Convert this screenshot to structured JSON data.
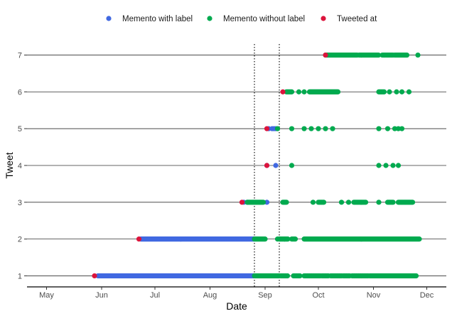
{
  "chart_data": {
    "type": "scatter",
    "title": "",
    "xlabel": "Date",
    "ylabel": "Tweet",
    "xlim": [
      "2021-04-20",
      "2021-12-12"
    ],
    "ylim": [
      0.7,
      7.3
    ],
    "x_ticks": [
      {
        "date": "2021-05-01",
        "label": "May"
      },
      {
        "date": "2021-06-01",
        "label": "Jun"
      },
      {
        "date": "2021-07-01",
        "label": "Jul"
      },
      {
        "date": "2021-08-01",
        "label": "Aug"
      },
      {
        "date": "2021-09-01",
        "label": "Sep"
      },
      {
        "date": "2021-10-01",
        "label": "Oct"
      },
      {
        "date": "2021-11-01",
        "label": "Nov"
      },
      {
        "date": "2021-12-01",
        "label": "Dec"
      }
    ],
    "y_ticks": [
      1,
      2,
      3,
      4,
      5,
      6,
      7
    ],
    "vertical_reference_lines": [
      "2021-08-26",
      "2021-09-09"
    ],
    "grid": "horizontal lines at each tweet",
    "legend_position": "top",
    "series": [
      {
        "name": "Memento with label",
        "color": "#4169E1",
        "points": [
          {
            "y": 1,
            "start": "2021-05-30",
            "end": "2021-08-26",
            "step": 0.35
          },
          {
            "y": 2,
            "start": "2021-06-23",
            "end": "2021-08-26",
            "step": 0.35
          },
          {
            "y": 3,
            "x": [
              "2021-08-20",
              "2021-08-22",
              "2021-09-02"
            ]
          },
          {
            "y": 4,
            "x": [
              "2021-09-02",
              "2021-09-07"
            ]
          },
          {
            "y": 5,
            "x": [
              "2021-09-03",
              "2021-09-05",
              "2021-09-06",
              "2021-09-07"
            ]
          }
        ]
      },
      {
        "name": "Memento without label",
        "color": "#00AA4F",
        "points": [
          {
            "y": 1,
            "start": "2021-08-26",
            "end": "2021-09-09",
            "step": 0.4
          },
          {
            "y": 1,
            "start": "2021-09-10",
            "end": "2021-09-14",
            "step": 0.6
          },
          {
            "y": 1,
            "start": "2021-09-17",
            "end": "2021-09-21",
            "step": 0.6
          },
          {
            "y": 1,
            "start": "2021-09-23",
            "end": "2021-10-02",
            "step": 0.6
          },
          {
            "y": 1,
            "start": "2021-10-03",
            "end": "2021-10-07",
            "step": 0.6
          },
          {
            "y": 1,
            "start": "2021-10-08",
            "end": "2021-10-14",
            "step": 0.6
          },
          {
            "y": 1,
            "start": "2021-10-15",
            "end": "2021-10-19",
            "step": 0.6
          },
          {
            "y": 1,
            "start": "2021-10-20",
            "end": "2021-10-29",
            "step": 0.6
          },
          {
            "y": 1,
            "start": "2021-10-30",
            "end": "2021-11-25",
            "step": 0.4
          },
          {
            "y": 2,
            "start": "2021-08-26",
            "end": "2021-09-01",
            "step": 0.4
          },
          {
            "y": 2,
            "x": [
              "2021-09-08",
              "2021-09-12"
            ]
          },
          {
            "y": 2,
            "start": "2021-09-09",
            "end": "2021-09-14",
            "step": 0.4
          },
          {
            "y": 2,
            "start": "2021-09-16",
            "end": "2021-09-18",
            "step": 0.5
          },
          {
            "y": 2,
            "start": "2021-09-23",
            "end": "2021-11-27",
            "step": 0.4
          },
          {
            "y": 3,
            "start": "2021-08-22",
            "end": "2021-08-31",
            "step": 0.5
          },
          {
            "y": 3,
            "start": "2021-09-11",
            "end": "2021-09-13",
            "step": 0.5
          },
          {
            "y": 3,
            "x": [
              "2021-09-28"
            ]
          },
          {
            "y": 3,
            "start": "2021-10-01",
            "end": "2021-10-04",
            "step": 0.6
          },
          {
            "y": 3,
            "x": [
              "2021-10-14",
              "2021-10-18"
            ]
          },
          {
            "y": 3,
            "start": "2021-10-21",
            "end": "2021-10-28",
            "step": 0.6
          },
          {
            "y": 3,
            "x": [
              "2021-11-04"
            ]
          },
          {
            "y": 3,
            "start": "2021-11-09",
            "end": "2021-11-12",
            "step": 0.6
          },
          {
            "y": 3,
            "start": "2021-11-15",
            "end": "2021-11-23",
            "step": 0.5
          },
          {
            "y": 4,
            "x": [
              "2021-09-16"
            ]
          },
          {
            "y": 4,
            "x": [
              "2021-11-04",
              "2021-11-08",
              "2021-11-12",
              "2021-11-15"
            ]
          },
          {
            "y": 5,
            "x": [
              "2021-09-08",
              "2021-09-16",
              "2021-09-23",
              "2021-09-27",
              "2021-10-01",
              "2021-10-05",
              "2021-10-09"
            ]
          },
          {
            "y": 5,
            "x": [
              "2021-11-04",
              "2021-11-09",
              "2021-11-13",
              "2021-11-15",
              "2021-11-17"
            ]
          },
          {
            "y": 6,
            "start": "2021-09-13",
            "end": "2021-09-16",
            "step": 0.5
          },
          {
            "y": 6,
            "x": [
              "2021-09-20",
              "2021-09-23"
            ]
          },
          {
            "y": 6,
            "start": "2021-09-26",
            "end": "2021-10-12",
            "step": 0.4
          },
          {
            "y": 6,
            "start": "2021-11-04",
            "end": "2021-11-07",
            "step": 0.5
          },
          {
            "y": 6,
            "x": [
              "2021-11-10",
              "2021-11-14",
              "2021-11-17",
              "2021-11-21"
            ]
          },
          {
            "y": 7,
            "start": "2021-10-05",
            "end": "2021-10-23",
            "step": 0.35
          },
          {
            "y": 7,
            "start": "2021-10-24",
            "end": "2021-11-04",
            "step": 0.4
          },
          {
            "y": 7,
            "start": "2021-11-06",
            "end": "2021-11-12",
            "step": 0.5
          },
          {
            "y": 7,
            "start": "2021-11-13",
            "end": "2021-11-20",
            "step": 0.4
          },
          {
            "y": 7,
            "x": [
              "2021-11-26"
            ]
          }
        ]
      },
      {
        "name": "Tweeted at",
        "color": "#DC143C",
        "points": [
          {
            "y": 1,
            "x": [
              "2021-05-28"
            ]
          },
          {
            "y": 2,
            "x": [
              "2021-06-22"
            ]
          },
          {
            "y": 3,
            "x": [
              "2021-08-19"
            ]
          },
          {
            "y": 4,
            "x": [
              "2021-09-02"
            ]
          },
          {
            "y": 5,
            "x": [
              "2021-09-02"
            ]
          },
          {
            "y": 6,
            "x": [
              "2021-09-11"
            ]
          },
          {
            "y": 7,
            "x": [
              "2021-10-05"
            ]
          }
        ]
      }
    ]
  }
}
